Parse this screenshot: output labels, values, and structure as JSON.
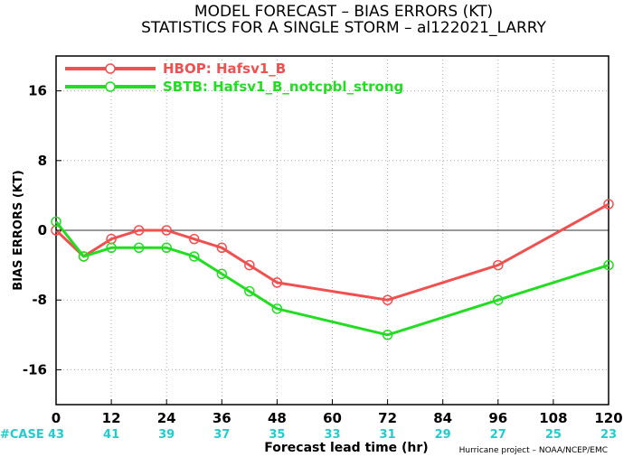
{
  "chart_data": {
    "type": "line",
    "title_line1": "MODEL FORECAST – BIAS ERRORS (KT)",
    "title_line2": "STATISTICS FOR A SINGLE STORM – al122021_LARRY",
    "xlabel": "Forecast lead time (hr)",
    "ylabel": "BIAS ERRORS (KT)",
    "xlim": [
      0,
      120
    ],
    "ylim": [
      -20,
      20
    ],
    "x_ticks": [
      0,
      12,
      24,
      36,
      48,
      60,
      72,
      84,
      96,
      108,
      120
    ],
    "y_ticks": [
      16,
      8,
      0,
      -8,
      -16
    ],
    "grid": true,
    "legend_position": "top-left",
    "series": [
      {
        "name": "HBOP: Hafsv1_B",
        "color": "#f05050",
        "x": [
          0,
          6,
          12,
          18,
          24,
          30,
          36,
          42,
          48,
          72,
          96,
          120
        ],
        "y": [
          0,
          -3,
          -1,
          0,
          0,
          -1,
          -2,
          -4,
          -6,
          -8,
          -4,
          3
        ]
      },
      {
        "name": "SBTB: Hafsv1_B_notcpbl_strong",
        "color": "#22dd22",
        "x": [
          0,
          6,
          12,
          18,
          24,
          30,
          36,
          42,
          48,
          72,
          96,
          120
        ],
        "y": [
          1,
          -3,
          -2,
          -2,
          -2,
          -3,
          -5,
          -7,
          -9,
          -12,
          -8,
          -4
        ]
      }
    ],
    "case_label": "#CASE",
    "case_color": "#22cccc",
    "cases": [
      "43",
      "41",
      "39",
      "37",
      "35",
      "33",
      "31",
      "29",
      "27",
      "25",
      "23"
    ],
    "credit": "Hurricane project – NOAA/NCEP/EMC"
  }
}
